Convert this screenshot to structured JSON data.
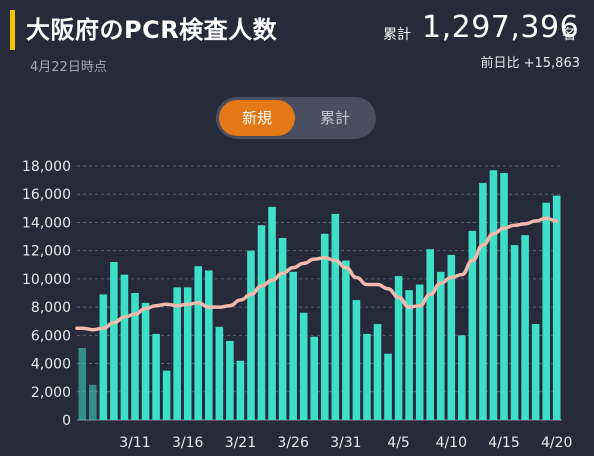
{
  "header": {
    "title": "大阪府のPCR検査人数",
    "date": "4月22日時点",
    "total_label": "累計",
    "total_value": "1,297,396",
    "total_unit": "名",
    "diff": "前日比 +15,863"
  },
  "toggle": {
    "new_label": "新規",
    "total_label": "累計",
    "selected": "新規"
  },
  "colors": {
    "bar": "#3de0c6",
    "line": "#f3b9ad",
    "toggle_active": "#e37817",
    "accent_bar": "#f2c200",
    "background": "#262a3b"
  },
  "chart_data": {
    "type": "bar",
    "ylim": [
      0,
      18000
    ],
    "yticks": [
      0,
      2000,
      4000,
      6000,
      8000,
      10000,
      12000,
      14000,
      16000,
      18000
    ],
    "ytick_labels": [
      "0",
      "2,000",
      "4,000",
      "6,000",
      "8,000",
      "10,000",
      "12,000",
      "14,000",
      "16,000",
      "18,000"
    ],
    "xtick_labels": [
      {
        "index": 5,
        "label": "3/11"
      },
      {
        "index": 10,
        "label": "3/16"
      },
      {
        "index": 15,
        "label": "3/21"
      },
      {
        "index": 20,
        "label": "3/26"
      },
      {
        "index": 25,
        "label": "3/31"
      },
      {
        "index": 30,
        "label": "4/5"
      },
      {
        "index": 35,
        "label": "4/10"
      },
      {
        "index": 40,
        "label": "4/15"
      },
      {
        "index": 45,
        "label": "4/20"
      }
    ],
    "values": [
      5100,
      2500,
      8900,
      11200,
      10300,
      9000,
      8300,
      6100,
      3500,
      9400,
      9400,
      10900,
      10600,
      6600,
      5600,
      4200,
      12000,
      13800,
      15100,
      12900,
      10500,
      7600,
      5900,
      13200,
      14600,
      11300,
      8500,
      6100,
      6800,
      4700,
      10200,
      9200,
      9600,
      12100,
      10500,
      11700,
      6000,
      13400,
      16800,
      17700,
      17500,
      12400,
      13100,
      6800,
      15400,
      15900
    ],
    "moving_average": [
      6500,
      6400,
      6500,
      6900,
      7300,
      7500,
      7900,
      8100,
      8200,
      8100,
      8200,
      8300,
      8000,
      8000,
      8100,
      8500,
      8900,
      9500,
      9900,
      10400,
      10800,
      11100,
      11400,
      11500,
      11300,
      10800,
      10100,
      9600,
      9600,
      9300,
      8700,
      8000,
      8100,
      8900,
      9700,
      10100,
      10300,
      11300,
      12400,
      13200,
      13600,
      13800,
      13900,
      14100,
      14300,
      14100
    ],
    "grid": true,
    "legend": "none"
  }
}
